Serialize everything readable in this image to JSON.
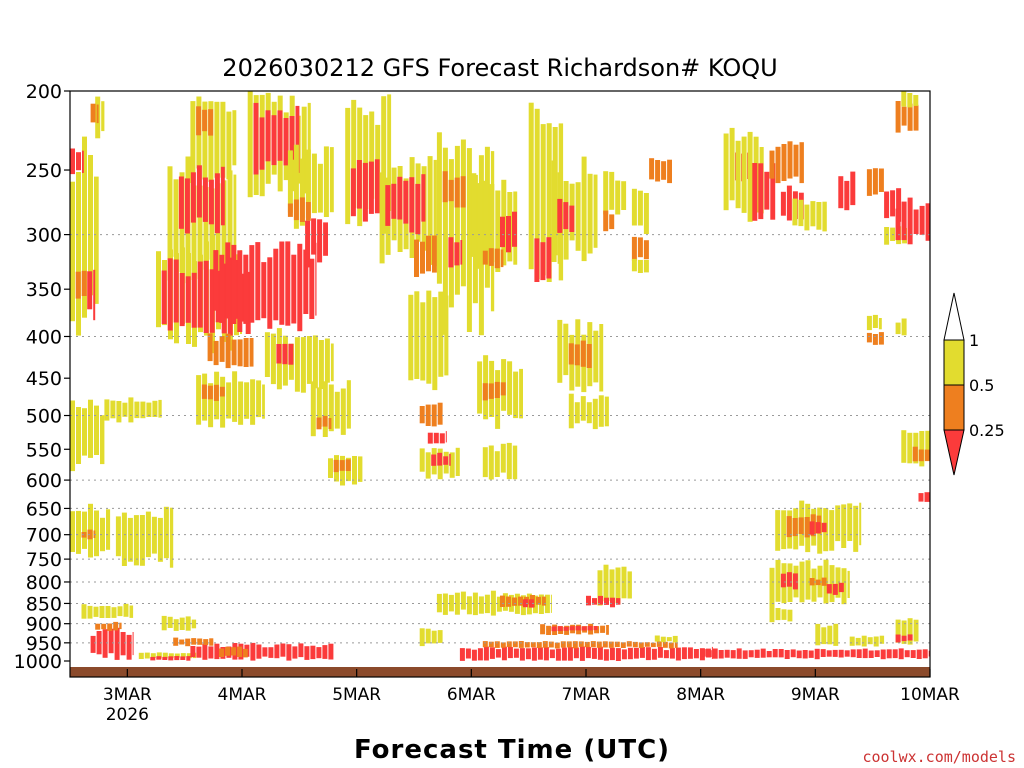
{
  "chart_data": {
    "type": "heatmap",
    "title": "2026030212 GFS Forecast Richardson# KOQU",
    "xlabel": "Forecast Time (UTC)",
    "ylabel": "",
    "credit": "coolwx.com/models",
    "x_ticks": [
      {
        "label": "3MAR",
        "sub": "2026",
        "day": 1
      },
      {
        "label": "4MAR",
        "sub": "",
        "day": 2
      },
      {
        "label": "5MAR",
        "sub": "",
        "day": 3
      },
      {
        "label": "6MAR",
        "sub": "",
        "day": 4
      },
      {
        "label": "7MAR",
        "sub": "",
        "day": 5
      },
      {
        "label": "8MAR",
        "sub": "",
        "day": 6
      },
      {
        "label": "9MAR",
        "sub": "",
        "day": 7
      },
      {
        "label": "10MAR",
        "sub": "",
        "day": 8
      }
    ],
    "x_range_days": [
      0.5,
      8.0
    ],
    "y_range_hPa": [
      200,
      1000
    ],
    "y_ticks": [
      200,
      250,
      300,
      350,
      400,
      450,
      500,
      550,
      600,
      650,
      700,
      750,
      800,
      850,
      900,
      950,
      1000
    ],
    "gridlines_hPa": [
      300,
      400,
      500,
      600,
      650,
      700,
      750,
      800,
      850,
      900,
      950
    ],
    "legend": {
      "position": "right",
      "levels": [
        {
          "label": "1",
          "value": 1.0
        },
        {
          "label": "0.5",
          "value": 0.5
        },
        {
          "label": "0.25",
          "value": 0.25
        }
      ],
      "bins": [
        {
          "range": "> 1",
          "color": "#ffffff"
        },
        {
          "range": "0.5 - 1",
          "color": "#e2dc2f"
        },
        {
          "range": "0.25 - 0.5",
          "color": "#ee7f1f"
        },
        {
          "range": "< 0.25",
          "color": "#fb3b3b"
        }
      ]
    },
    "colors": {
      "yellow": "#e2dc2f",
      "orange": "#ee7f1f",
      "red": "#fb3b3b",
      "ground": "#8b4a2b"
    },
    "regions": [
      {
        "bin": "yellow",
        "t0": 0.5,
        "t1": 0.75,
        "p0": 225,
        "p1": 410
      },
      {
        "bin": "red",
        "t0": 0.5,
        "t1": 0.62,
        "p0": 235,
        "p1": 255
      },
      {
        "bin": "red",
        "t0": 0.65,
        "t1": 0.72,
        "p0": 325,
        "p1": 385
      },
      {
        "bin": "orange",
        "t0": 0.55,
        "t1": 0.65,
        "p0": 330,
        "p1": 365
      },
      {
        "bin": "yellow",
        "t0": 0.72,
        "t1": 0.8,
        "p0": 200,
        "p1": 230
      },
      {
        "bin": "orange",
        "t0": 0.68,
        "t1": 0.75,
        "p0": 205,
        "p1": 220
      },
      {
        "bin": "yellow",
        "t0": 0.5,
        "t1": 0.8,
        "p0": 475,
        "p1": 590
      },
      {
        "bin": "yellow",
        "t0": 0.8,
        "t1": 1.3,
        "p0": 475,
        "p1": 510
      },
      {
        "bin": "yellow",
        "t0": 0.5,
        "t1": 0.85,
        "p0": 640,
        "p1": 760
      },
      {
        "bin": "orange",
        "t0": 0.6,
        "t1": 0.72,
        "p0": 690,
        "p1": 710
      },
      {
        "bin": "yellow",
        "t0": 0.9,
        "t1": 1.4,
        "p0": 640,
        "p1": 770
      },
      {
        "bin": "yellow",
        "t0": 0.6,
        "t1": 1.05,
        "p0": 850,
        "p1": 890
      },
      {
        "bin": "red",
        "t0": 0.68,
        "t1": 1.05,
        "p0": 910,
        "p1": 1000
      },
      {
        "bin": "orange",
        "t0": 0.72,
        "t1": 0.95,
        "p0": 895,
        "p1": 920
      },
      {
        "bin": "yellow",
        "t0": 1.1,
        "t1": 1.6,
        "p0": 975,
        "p1": 995
      },
      {
        "bin": "red",
        "t0": 1.2,
        "t1": 1.55,
        "p0": 985,
        "p1": 1000
      },
      {
        "bin": "yellow",
        "t0": 1.55,
        "t1": 1.95,
        "p0": 200,
        "p1": 260
      },
      {
        "bin": "orange",
        "t0": 1.6,
        "t1": 1.75,
        "p0": 205,
        "p1": 230
      },
      {
        "bin": "yellow",
        "t0": 1.35,
        "t1": 1.95,
        "p0": 240,
        "p1": 350
      },
      {
        "bin": "red",
        "t0": 1.45,
        "t1": 1.85,
        "p0": 245,
        "p1": 300
      },
      {
        "bin": "yellow",
        "t0": 1.25,
        "t1": 2.0,
        "p0": 300,
        "p1": 420
      },
      {
        "bin": "red",
        "t0": 1.3,
        "t1": 2.1,
        "p0": 320,
        "p1": 400
      },
      {
        "bin": "red",
        "t0": 1.75,
        "t1": 2.65,
        "p0": 305,
        "p1": 395
      },
      {
        "bin": "orange",
        "t0": 1.7,
        "t1": 2.1,
        "p0": 395,
        "p1": 440
      },
      {
        "bin": "yellow",
        "t0": 1.6,
        "t1": 2.2,
        "p0": 440,
        "p1": 520
      },
      {
        "bin": "orange",
        "t0": 1.65,
        "t1": 1.85,
        "p0": 455,
        "p1": 480
      },
      {
        "bin": "yellow",
        "t0": 2.05,
        "t1": 2.6,
        "p0": 200,
        "p1": 270
      },
      {
        "bin": "red",
        "t0": 2.1,
        "t1": 2.5,
        "p0": 205,
        "p1": 255
      },
      {
        "bin": "yellow",
        "t0": 2.4,
        "t1": 2.8,
        "p0": 230,
        "p1": 300
      },
      {
        "bin": "orange",
        "t0": 2.4,
        "t1": 2.6,
        "p0": 270,
        "p1": 290
      },
      {
        "bin": "red",
        "t0": 2.55,
        "t1": 2.75,
        "p0": 280,
        "p1": 330
      },
      {
        "bin": "yellow",
        "t0": 2.2,
        "t1": 2.8,
        "p0": 390,
        "p1": 470
      },
      {
        "bin": "red",
        "t0": 2.3,
        "t1": 2.45,
        "p0": 405,
        "p1": 440
      },
      {
        "bin": "yellow",
        "t0": 2.6,
        "t1": 2.95,
        "p0": 450,
        "p1": 540
      },
      {
        "bin": "orange",
        "t0": 2.65,
        "t1": 2.78,
        "p0": 500,
        "p1": 520
      },
      {
        "bin": "yellow",
        "t0": 2.75,
        "t1": 3.05,
        "p0": 550,
        "p1": 610
      },
      {
        "bin": "orange",
        "t0": 2.8,
        "t1": 2.95,
        "p0": 560,
        "p1": 590
      },
      {
        "bin": "yellow",
        "t0": 2.9,
        "t1": 3.3,
        "p0": 200,
        "p1": 300
      },
      {
        "bin": "red",
        "t0": 2.95,
        "t1": 3.2,
        "p0": 240,
        "p1": 290
      },
      {
        "bin": "yellow",
        "t0": 3.2,
        "t1": 3.7,
        "p0": 240,
        "p1": 330
      },
      {
        "bin": "red",
        "t0": 3.25,
        "t1": 3.6,
        "p0": 250,
        "p1": 300
      },
      {
        "bin": "orange",
        "t0": 3.5,
        "t1": 3.7,
        "p0": 300,
        "p1": 340
      },
      {
        "bin": "yellow",
        "t0": 3.45,
        "t1": 3.8,
        "p0": 350,
        "p1": 470
      },
      {
        "bin": "orange",
        "t0": 3.55,
        "t1": 3.75,
        "p0": 480,
        "p1": 520
      },
      {
        "bin": "red",
        "t0": 3.62,
        "t1": 3.78,
        "p0": 520,
        "p1": 545
      },
      {
        "bin": "yellow",
        "t0": 3.55,
        "t1": 3.9,
        "p0": 545,
        "p1": 600
      },
      {
        "bin": "red",
        "t0": 3.65,
        "t1": 3.82,
        "p0": 555,
        "p1": 580
      },
      {
        "bin": "yellow",
        "t0": 3.7,
        "t1": 4.2,
        "p0": 220,
        "p1": 400
      },
      {
        "bin": "orange",
        "t0": 3.75,
        "t1": 3.95,
        "p0": 250,
        "p1": 280
      },
      {
        "bin": "red",
        "t0": 3.8,
        "t1": 3.92,
        "p0": 300,
        "p1": 330
      },
      {
        "bin": "yellow",
        "t0": 4.0,
        "t1": 4.4,
        "p0": 250,
        "p1": 340
      },
      {
        "bin": "orange",
        "t0": 4.1,
        "t1": 4.28,
        "p0": 310,
        "p1": 330
      },
      {
        "bin": "red",
        "t0": 4.25,
        "t1": 4.4,
        "p0": 280,
        "p1": 320
      },
      {
        "bin": "yellow",
        "t0": 4.05,
        "t1": 4.45,
        "p0": 420,
        "p1": 520
      },
      {
        "bin": "orange",
        "t0": 4.1,
        "t1": 4.3,
        "p0": 450,
        "p1": 480
      },
      {
        "bin": "yellow",
        "t0": 4.1,
        "t1": 4.4,
        "p0": 540,
        "p1": 600
      },
      {
        "bin": "yellow",
        "t0": 4.5,
        "t1": 4.8,
        "p0": 200,
        "p1": 360
      },
      {
        "bin": "red",
        "t0": 4.55,
        "t1": 4.7,
        "p0": 300,
        "p1": 345
      },
      {
        "bin": "yellow",
        "t0": 4.7,
        "t1": 5.1,
        "p0": 240,
        "p1": 330
      },
      {
        "bin": "red",
        "t0": 4.75,
        "t1": 4.9,
        "p0": 270,
        "p1": 300
      },
      {
        "bin": "yellow",
        "t0": 4.75,
        "t1": 5.15,
        "p0": 380,
        "p1": 470
      },
      {
        "bin": "orange",
        "t0": 4.85,
        "t1": 5.05,
        "p0": 400,
        "p1": 440
      },
      {
        "bin": "yellow",
        "t0": 4.85,
        "t1": 5.2,
        "p0": 470,
        "p1": 520
      },
      {
        "bin": "yellow",
        "t0": 5.15,
        "t1": 5.35,
        "p0": 250,
        "p1": 290
      },
      {
        "bin": "orange",
        "t0": 5.15,
        "t1": 5.25,
        "p0": 280,
        "p1": 300
      },
      {
        "bin": "yellow",
        "t0": 5.1,
        "t1": 5.4,
        "p0": 760,
        "p1": 860
      },
      {
        "bin": "red",
        "t0": 5.0,
        "t1": 5.3,
        "p0": 830,
        "p1": 860
      },
      {
        "bin": "yellow",
        "t0": 5.4,
        "t1": 5.55,
        "p0": 260,
        "p1": 300
      },
      {
        "bin": "orange",
        "t0": 5.4,
        "t1": 5.55,
        "p0": 300,
        "p1": 325
      },
      {
        "bin": "yellow",
        "t0": 5.4,
        "t1": 5.55,
        "p0": 320,
        "p1": 335
      },
      {
        "bin": "yellow",
        "t0": 3.7,
        "t1": 4.7,
        "p0": 820,
        "p1": 880
      },
      {
        "bin": "orange",
        "t0": 4.25,
        "t1": 4.65,
        "p0": 830,
        "p1": 860
      },
      {
        "bin": "red",
        "t0": 4.45,
        "t1": 4.55,
        "p0": 840,
        "p1": 860
      },
      {
        "bin": "orange",
        "t0": 4.6,
        "t1": 5.2,
        "p0": 900,
        "p1": 930
      },
      {
        "bin": "red",
        "t0": 4.7,
        "t1": 5.1,
        "p0": 905,
        "p1": 920
      },
      {
        "bin": "yellow",
        "t0": 3.55,
        "t1": 3.75,
        "p0": 910,
        "p1": 960
      },
      {
        "bin": "red",
        "t0": 1.55,
        "t1": 2.8,
        "p0": 950,
        "p1": 1000
      },
      {
        "bin": "orange",
        "t0": 1.4,
        "t1": 1.75,
        "p0": 935,
        "p1": 960
      },
      {
        "bin": "yellow",
        "t0": 1.3,
        "t1": 1.6,
        "p0": 880,
        "p1": 920
      },
      {
        "bin": "orange",
        "t0": 1.8,
        "t1": 2.05,
        "p0": 960,
        "p1": 990
      },
      {
        "bin": "red",
        "t0": 3.9,
        "t1": 6.1,
        "p0": 960,
        "p1": 1000
      },
      {
        "bin": "orange",
        "t0": 4.1,
        "t1": 5.8,
        "p0": 945,
        "p1": 965
      },
      {
        "bin": "red",
        "t0": 6.0,
        "t1": 8.0,
        "p0": 965,
        "p1": 995
      },
      {
        "bin": "yellow",
        "t0": 5.6,
        "t1": 5.8,
        "p0": 930,
        "p1": 950
      },
      {
        "bin": "orange",
        "t0": 5.55,
        "t1": 5.75,
        "p0": 240,
        "p1": 260
      },
      {
        "bin": "red",
        "t0": 6.3,
        "t1": 6.45,
        "p0": 235,
        "p1": 260
      },
      {
        "bin": "yellow",
        "t0": 6.2,
        "t1": 6.55,
        "p0": 220,
        "p1": 290
      },
      {
        "bin": "red",
        "t0": 6.45,
        "t1": 6.65,
        "p0": 240,
        "p1": 290
      },
      {
        "bin": "orange",
        "t0": 6.6,
        "t1": 6.9,
        "p0": 230,
        "p1": 260
      },
      {
        "bin": "red",
        "t0": 6.7,
        "t1": 6.9,
        "p0": 260,
        "p1": 290
      },
      {
        "bin": "yellow",
        "t0": 6.8,
        "t1": 7.1,
        "p0": 270,
        "p1": 300
      },
      {
        "bin": "red",
        "t0": 7.2,
        "t1": 7.35,
        "p0": 250,
        "p1": 285
      },
      {
        "bin": "orange",
        "t0": 7.45,
        "t1": 7.6,
        "p0": 245,
        "p1": 270
      },
      {
        "bin": "red",
        "t0": 7.6,
        "t1": 7.75,
        "p0": 260,
        "p1": 290
      },
      {
        "bin": "yellow",
        "t0": 7.6,
        "t1": 7.8,
        "p0": 290,
        "p1": 310
      },
      {
        "bin": "red",
        "t0": 7.7,
        "t1": 8.0,
        "p0": 270,
        "p1": 310
      },
      {
        "bin": "orange",
        "t0": 7.7,
        "t1": 7.9,
        "p0": 205,
        "p1": 225
      },
      {
        "bin": "yellow",
        "t0": 7.75,
        "t1": 7.9,
        "p0": 200,
        "p1": 210
      },
      {
        "bin": "yellow",
        "t0": 7.45,
        "t1": 7.58,
        "p0": 375,
        "p1": 395
      },
      {
        "bin": "orange",
        "t0": 7.45,
        "t1": 7.6,
        "p0": 395,
        "p1": 410
      },
      {
        "bin": "yellow",
        "t0": 7.7,
        "t1": 7.8,
        "p0": 380,
        "p1": 400
      },
      {
        "bin": "yellow",
        "t0": 7.75,
        "t1": 8.0,
        "p0": 520,
        "p1": 580
      },
      {
        "bin": "orange",
        "t0": 7.85,
        "t1": 8.0,
        "p0": 545,
        "p1": 570
      },
      {
        "bin": "red",
        "t0": 7.9,
        "t1": 8.0,
        "p0": 620,
        "p1": 640
      },
      {
        "bin": "yellow",
        "t0": 6.65,
        "t1": 7.4,
        "p0": 630,
        "p1": 740
      },
      {
        "bin": "orange",
        "t0": 6.75,
        "t1": 7.05,
        "p0": 660,
        "p1": 710
      },
      {
        "bin": "red",
        "t0": 6.95,
        "t1": 7.1,
        "p0": 670,
        "p1": 700
      },
      {
        "bin": "yellow",
        "t0": 6.6,
        "t1": 7.3,
        "p0": 750,
        "p1": 860
      },
      {
        "bin": "red",
        "t0": 6.7,
        "t1": 6.85,
        "p0": 770,
        "p1": 820
      },
      {
        "bin": "orange",
        "t0": 6.95,
        "t1": 7.1,
        "p0": 790,
        "p1": 810
      },
      {
        "bin": "red",
        "t0": 7.1,
        "t1": 7.25,
        "p0": 800,
        "p1": 830
      },
      {
        "bin": "yellow",
        "t0": 6.6,
        "t1": 6.8,
        "p0": 855,
        "p1": 900
      },
      {
        "bin": "yellow",
        "t0": 7.0,
        "t1": 7.2,
        "p0": 900,
        "p1": 960
      },
      {
        "bin": "yellow",
        "t0": 7.7,
        "t1": 7.9,
        "p0": 880,
        "p1": 960
      },
      {
        "bin": "red",
        "t0": 7.7,
        "t1": 7.85,
        "p0": 925,
        "p1": 950
      },
      {
        "bin": "yellow",
        "t0": 7.3,
        "t1": 7.6,
        "p0": 930,
        "p1": 960
      }
    ]
  }
}
